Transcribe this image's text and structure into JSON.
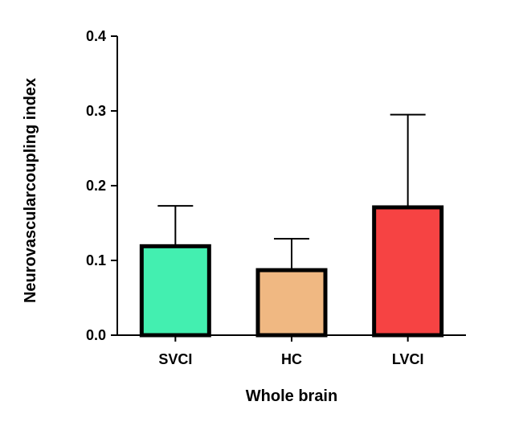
{
  "chart_data": {
    "type": "bar",
    "title": "",
    "xlabel": "Whole brain",
    "ylabel": "Neurovascularcoupling index",
    "ylim": [
      0,
      0.4
    ],
    "yticks": [
      "0.0",
      "0.1",
      "0.2",
      "0.3",
      "0.4"
    ],
    "categories": [
      "SVCI",
      "HC",
      "LVCI"
    ],
    "values": [
      0.119,
      0.087,
      0.171
    ],
    "error_upper": [
      0.173,
      0.129,
      0.295
    ],
    "colors": [
      "#43efb0",
      "#f0b882",
      "#f64343"
    ],
    "grid": false,
    "legend": "none"
  }
}
